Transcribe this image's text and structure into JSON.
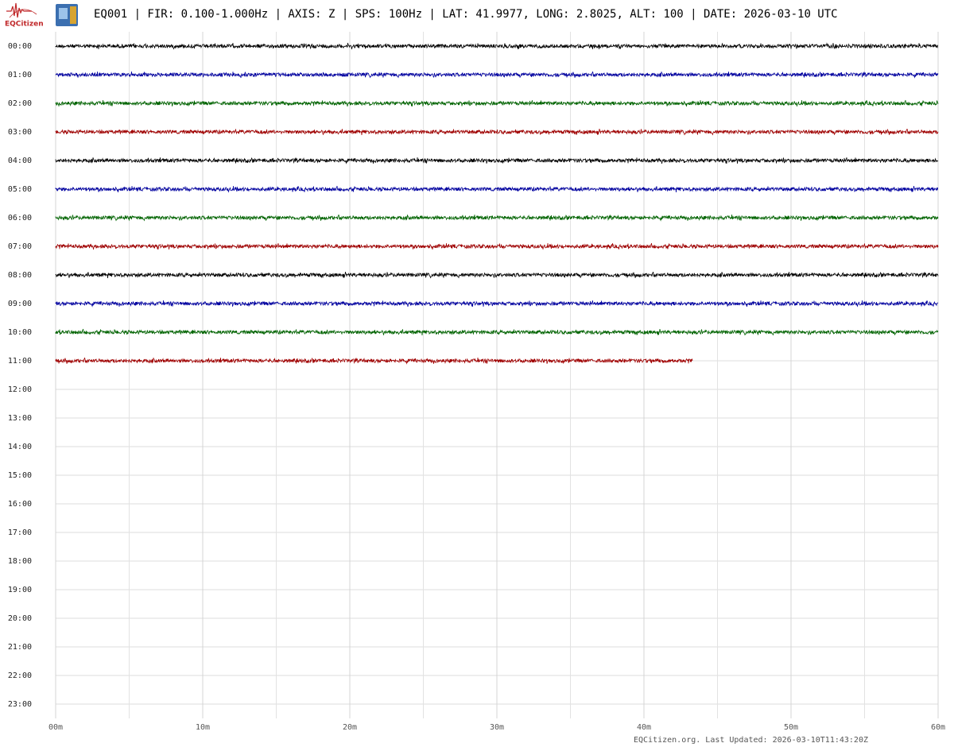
{
  "logo": "EQCitizen",
  "footer": "EQCitizen.org. Last Updated: 2026-03-10T11:43:20Z",
  "chart_data": {
    "type": "helicorder",
    "title": "EQ001 | FIR: 0.100-1.000Hz | AXIS: Z | SPS: 100Hz | LAT: 41.9977, LONG: 2.8025, ALT: 100 | DATE: 2026-03-10 UTC",
    "categories": [
      "00:00",
      "01:00",
      "02:00",
      "03:00",
      "04:00",
      "05:00",
      "06:00",
      "07:00",
      "08:00",
      "09:00",
      "10:00",
      "11:00",
      "12:00",
      "13:00",
      "14:00",
      "15:00",
      "16:00",
      "17:00",
      "18:00",
      "19:00",
      "20:00",
      "21:00",
      "22:00",
      "23:00"
    ],
    "values": [
      60,
      60,
      60,
      60,
      60,
      60,
      60,
      60,
      60,
      60,
      60,
      43.3,
      null,
      null,
      null,
      null,
      null,
      null,
      null,
      null,
      null,
      null,
      null,
      null
    ],
    "colors": [
      "#000000",
      "#0000a0",
      "#006400",
      "#a00000"
    ],
    "xlim": [
      0,
      60
    ],
    "xticks": [
      {
        "value": 0,
        "label": "00m"
      },
      {
        "value": 10,
        "label": "10m"
      },
      {
        "value": 20,
        "label": "20m"
      },
      {
        "value": 30,
        "label": "30m"
      },
      {
        "value": 40,
        "label": "40m"
      },
      {
        "value": 50,
        "label": "50m"
      },
      {
        "value": 60,
        "label": "60m"
      }
    ],
    "minor_xticks": [
      5,
      15,
      25,
      35,
      45,
      55
    ],
    "grid": true
  }
}
